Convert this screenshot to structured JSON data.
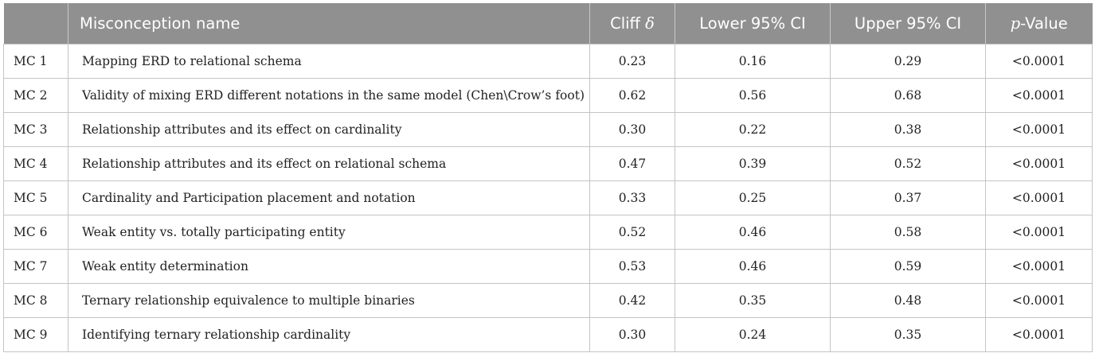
{
  "table": {
    "headers": {
      "id": "",
      "name": "Misconception name",
      "cliff": "Cliff δ",
      "lower": "Lower 95% CI",
      "upper": "Upper 95% CI",
      "p_italic": "p",
      "p_rest": "-Value"
    },
    "rows": [
      {
        "id": "MC 1",
        "name": "Mapping ERD to relational schema",
        "cliff": "0.23",
        "lower": "0.16",
        "upper": "0.29",
        "p": "<0.0001"
      },
      {
        "id": "MC 2",
        "name": "Validity of mixing ERD different notations in the same model (Chen\\Crow’s foot)",
        "cliff": "0.62",
        "lower": "0.56",
        "upper": "0.68",
        "p": "<0.0001"
      },
      {
        "id": "MC 3",
        "name": "Relationship attributes and its effect on cardinality",
        "cliff": "0.30",
        "lower": "0.22",
        "upper": "0.38",
        "p": "<0.0001"
      },
      {
        "id": "MC 4",
        "name": "Relationship attributes and its effect on relational schema",
        "cliff": "0.47",
        "lower": "0.39",
        "upper": "0.52",
        "p": "<0.0001"
      },
      {
        "id": "MC 5",
        "name": "Cardinality and Participation placement and notation",
        "cliff": "0.33",
        "lower": "0.25",
        "upper": "0.37",
        "p": "<0.0001"
      },
      {
        "id": "MC 6",
        "name": "Weak entity vs. totally participating entity",
        "cliff": "0.52",
        "lower": "0.46",
        "upper": "0.58",
        "p": "<0.0001"
      },
      {
        "id": "MC 7",
        "name": "Weak entity determination",
        "cliff": "0.53",
        "lower": "0.46",
        "upper": "0.59",
        "p": "<0.0001"
      },
      {
        "id": "MC 8",
        "name": "Ternary relationship equivalence to multiple binaries",
        "cliff": "0.42",
        "lower": "0.35",
        "upper": "0.48",
        "p": "<0.0001"
      },
      {
        "id": "MC 9",
        "name": "Identifying ternary relationship cardinality",
        "cliff": "0.30",
        "lower": "0.24",
        "upper": "0.35",
        "p": "<0.0001"
      }
    ]
  }
}
